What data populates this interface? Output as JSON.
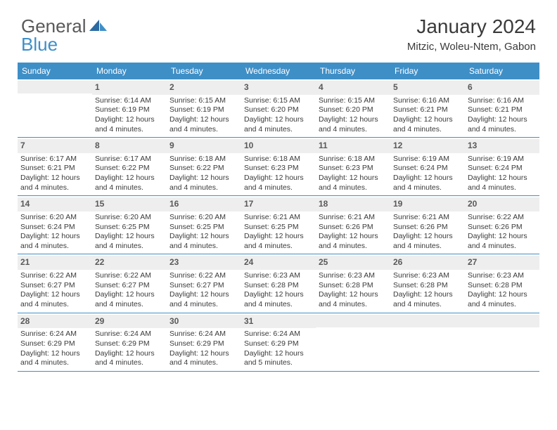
{
  "logo": {
    "word1": "General",
    "word2": "Blue"
  },
  "title": "January 2024",
  "location": "Mitzic, Woleu-Ntem, Gabon",
  "header_bg": "#3f8fc7",
  "day_names": [
    "Sunday",
    "Monday",
    "Tuesday",
    "Wednesday",
    "Thursday",
    "Friday",
    "Saturday"
  ],
  "weeks": [
    [
      {
        "n": "",
        "lines": []
      },
      {
        "n": "1",
        "lines": [
          "Sunrise: 6:14 AM",
          "Sunset: 6:19 PM",
          "Daylight: 12 hours and 4 minutes."
        ]
      },
      {
        "n": "2",
        "lines": [
          "Sunrise: 6:15 AM",
          "Sunset: 6:19 PM",
          "Daylight: 12 hours and 4 minutes."
        ]
      },
      {
        "n": "3",
        "lines": [
          "Sunrise: 6:15 AM",
          "Sunset: 6:20 PM",
          "Daylight: 12 hours and 4 minutes."
        ]
      },
      {
        "n": "4",
        "lines": [
          "Sunrise: 6:15 AM",
          "Sunset: 6:20 PM",
          "Daylight: 12 hours and 4 minutes."
        ]
      },
      {
        "n": "5",
        "lines": [
          "Sunrise: 6:16 AM",
          "Sunset: 6:21 PM",
          "Daylight: 12 hours and 4 minutes."
        ]
      },
      {
        "n": "6",
        "lines": [
          "Sunrise: 6:16 AM",
          "Sunset: 6:21 PM",
          "Daylight: 12 hours and 4 minutes."
        ]
      }
    ],
    [
      {
        "n": "7",
        "lines": [
          "Sunrise: 6:17 AM",
          "Sunset: 6:21 PM",
          "Daylight: 12 hours and 4 minutes."
        ]
      },
      {
        "n": "8",
        "lines": [
          "Sunrise: 6:17 AM",
          "Sunset: 6:22 PM",
          "Daylight: 12 hours and 4 minutes."
        ]
      },
      {
        "n": "9",
        "lines": [
          "Sunrise: 6:18 AM",
          "Sunset: 6:22 PM",
          "Daylight: 12 hours and 4 minutes."
        ]
      },
      {
        "n": "10",
        "lines": [
          "Sunrise: 6:18 AM",
          "Sunset: 6:23 PM",
          "Daylight: 12 hours and 4 minutes."
        ]
      },
      {
        "n": "11",
        "lines": [
          "Sunrise: 6:18 AM",
          "Sunset: 6:23 PM",
          "Daylight: 12 hours and 4 minutes."
        ]
      },
      {
        "n": "12",
        "lines": [
          "Sunrise: 6:19 AM",
          "Sunset: 6:24 PM",
          "Daylight: 12 hours and 4 minutes."
        ]
      },
      {
        "n": "13",
        "lines": [
          "Sunrise: 6:19 AM",
          "Sunset: 6:24 PM",
          "Daylight: 12 hours and 4 minutes."
        ]
      }
    ],
    [
      {
        "n": "14",
        "lines": [
          "Sunrise: 6:20 AM",
          "Sunset: 6:24 PM",
          "Daylight: 12 hours and 4 minutes."
        ]
      },
      {
        "n": "15",
        "lines": [
          "Sunrise: 6:20 AM",
          "Sunset: 6:25 PM",
          "Daylight: 12 hours and 4 minutes."
        ]
      },
      {
        "n": "16",
        "lines": [
          "Sunrise: 6:20 AM",
          "Sunset: 6:25 PM",
          "Daylight: 12 hours and 4 minutes."
        ]
      },
      {
        "n": "17",
        "lines": [
          "Sunrise: 6:21 AM",
          "Sunset: 6:25 PM",
          "Daylight: 12 hours and 4 minutes."
        ]
      },
      {
        "n": "18",
        "lines": [
          "Sunrise: 6:21 AM",
          "Sunset: 6:26 PM",
          "Daylight: 12 hours and 4 minutes."
        ]
      },
      {
        "n": "19",
        "lines": [
          "Sunrise: 6:21 AM",
          "Sunset: 6:26 PM",
          "Daylight: 12 hours and 4 minutes."
        ]
      },
      {
        "n": "20",
        "lines": [
          "Sunrise: 6:22 AM",
          "Sunset: 6:26 PM",
          "Daylight: 12 hours and 4 minutes."
        ]
      }
    ],
    [
      {
        "n": "21",
        "lines": [
          "Sunrise: 6:22 AM",
          "Sunset: 6:27 PM",
          "Daylight: 12 hours and 4 minutes."
        ]
      },
      {
        "n": "22",
        "lines": [
          "Sunrise: 6:22 AM",
          "Sunset: 6:27 PM",
          "Daylight: 12 hours and 4 minutes."
        ]
      },
      {
        "n": "23",
        "lines": [
          "Sunrise: 6:22 AM",
          "Sunset: 6:27 PM",
          "Daylight: 12 hours and 4 minutes."
        ]
      },
      {
        "n": "24",
        "lines": [
          "Sunrise: 6:23 AM",
          "Sunset: 6:28 PM",
          "Daylight: 12 hours and 4 minutes."
        ]
      },
      {
        "n": "25",
        "lines": [
          "Sunrise: 6:23 AM",
          "Sunset: 6:28 PM",
          "Daylight: 12 hours and 4 minutes."
        ]
      },
      {
        "n": "26",
        "lines": [
          "Sunrise: 6:23 AM",
          "Sunset: 6:28 PM",
          "Daylight: 12 hours and 4 minutes."
        ]
      },
      {
        "n": "27",
        "lines": [
          "Sunrise: 6:23 AM",
          "Sunset: 6:28 PM",
          "Daylight: 12 hours and 4 minutes."
        ]
      }
    ],
    [
      {
        "n": "28",
        "lines": [
          "Sunrise: 6:24 AM",
          "Sunset: 6:29 PM",
          "Daylight: 12 hours and 4 minutes."
        ]
      },
      {
        "n": "29",
        "lines": [
          "Sunrise: 6:24 AM",
          "Sunset: 6:29 PM",
          "Daylight: 12 hours and 4 minutes."
        ]
      },
      {
        "n": "30",
        "lines": [
          "Sunrise: 6:24 AM",
          "Sunset: 6:29 PM",
          "Daylight: 12 hours and 4 minutes."
        ]
      },
      {
        "n": "31",
        "lines": [
          "Sunrise: 6:24 AM",
          "Sunset: 6:29 PM",
          "Daylight: 12 hours and 5 minutes."
        ]
      },
      {
        "n": "",
        "lines": []
      },
      {
        "n": "",
        "lines": []
      },
      {
        "n": "",
        "lines": []
      }
    ]
  ]
}
